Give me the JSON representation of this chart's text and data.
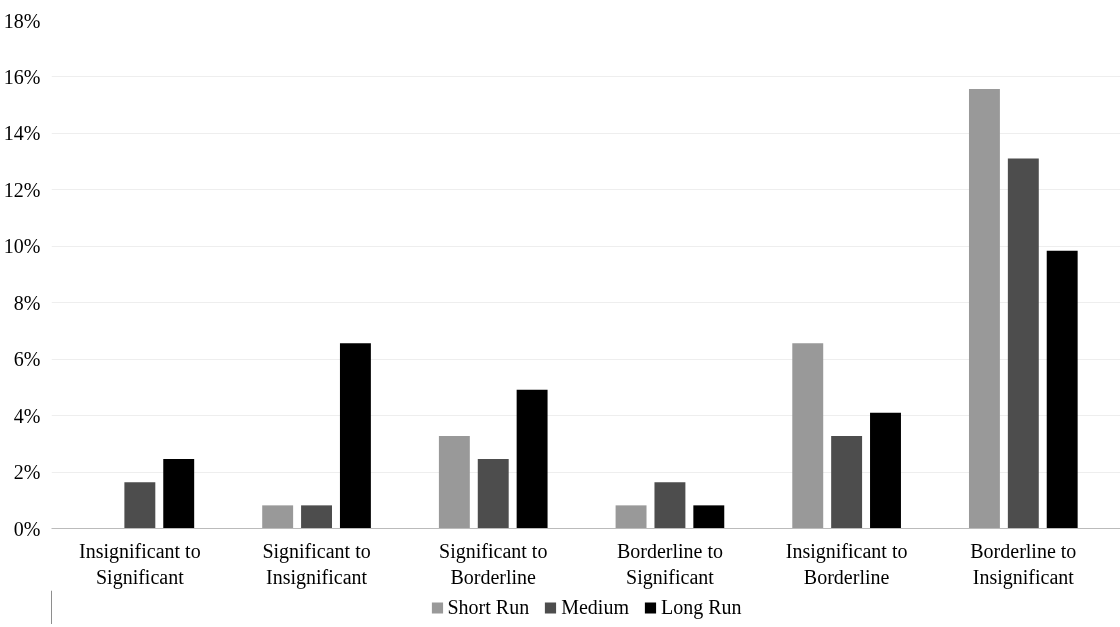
{
  "chart_data": {
    "type": "bar",
    "categories": [
      "Insignificant to Significant",
      "Significant to Insignificant",
      "Significant to Borderline",
      "Borderline to Significant",
      "Insignificant to Borderline",
      "Borderline to Insignificant"
    ],
    "series": [
      {
        "name": "Short Run",
        "color": "#999999",
        "values": [
          0,
          0.82,
          3.28,
          0.82,
          6.56,
          15.57
        ]
      },
      {
        "name": "Medium",
        "color": "#4d4d4d",
        "values": [
          1.64,
          0.82,
          2.46,
          1.64,
          3.28,
          13.11
        ]
      },
      {
        "name": "Long Run",
        "color": "#000000",
        "values": [
          2.46,
          6.56,
          4.92,
          0.82,
          4.1,
          9.84
        ]
      }
    ],
    "ylim": [
      0,
      18
    ],
    "yticks": [
      {
        "value": 0,
        "label": "0%"
      },
      {
        "value": 2,
        "label": "2%"
      },
      {
        "value": 4,
        "label": "4%"
      },
      {
        "value": 6,
        "label": "6%"
      },
      {
        "value": 8,
        "label": "8%"
      },
      {
        "value": 10,
        "label": "10%"
      },
      {
        "value": 12,
        "label": "12%"
      },
      {
        "value": 14,
        "label": "14%"
      },
      {
        "value": 16,
        "label": "16%"
      },
      {
        "value": 18,
        "label": "18%"
      }
    ],
    "grid": "y",
    "legend": "bottom"
  }
}
